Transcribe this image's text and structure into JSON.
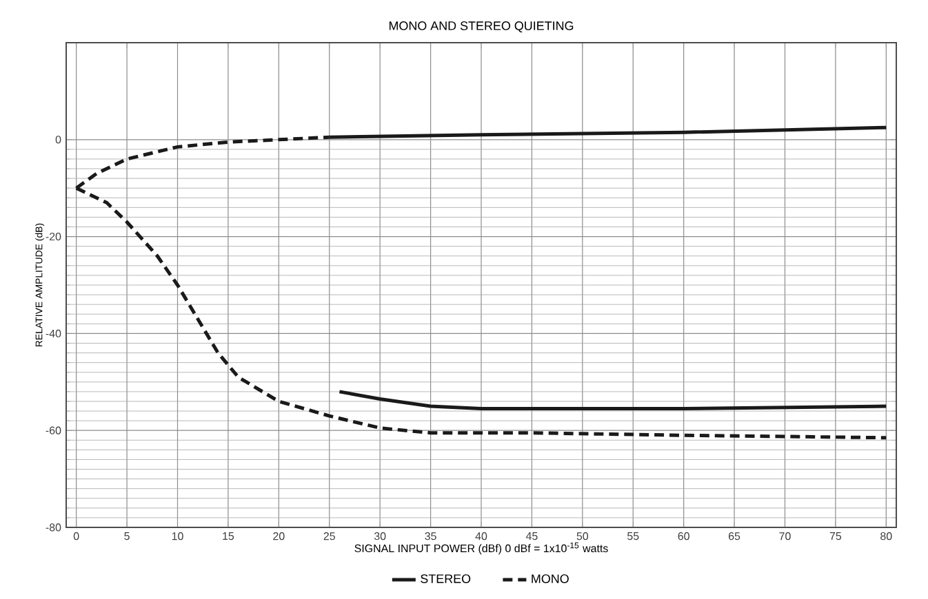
{
  "chart_data": {
    "type": "line",
    "title": "MONO AND STEREO QUIETING",
    "xlabel": "SIGNAL INPUT POWER (dBf) 0 dBf = 1x10$^{-15}$ watts",
    "ylabel": "RELATIVE AMPLITUDE (dB)",
    "xlim": [
      -1,
      81
    ],
    "ylim": [
      -80,
      20
    ],
    "xticks": [
      0,
      5,
      10,
      15,
      20,
      25,
      30,
      35,
      40,
      45,
      50,
      55,
      60,
      65,
      70,
      75,
      80
    ],
    "yticks": [
      -80,
      -60,
      -40,
      -20,
      0
    ],
    "grid": true,
    "legend": "bottom",
    "marker": "none",
    "series": [
      {
        "name": "STEREO",
        "color": "#1a1a1a",
        "line_style": "solid",
        "x": [
          25,
          40,
          60,
          80
        ],
        "values": [
          0.5,
          1,
          1.5,
          2.5
        ]
      },
      {
        "color": "#1a1a1a",
        "line_style": "solid",
        "x": [
          26,
          30,
          35,
          40,
          60,
          80
        ],
        "values": [
          -52,
          -53.5,
          -55,
          -55.5,
          -55.5,
          -55
        ]
      },
      {
        "name": "MONO",
        "color": "#1a1a1a",
        "line_style": "dashed",
        "x": [
          0,
          2,
          5,
          8,
          10,
          15,
          20,
          25
        ],
        "values": [
          -10,
          -7,
          -4,
          -2.5,
          -1.5,
          -0.5,
          0,
          0.5
        ]
      },
      {
        "color": "#1a1a1a",
        "line_style": "dashed",
        "x": [
          0,
          3,
          5,
          8,
          10,
          12,
          14,
          16,
          20,
          25,
          30,
          35,
          45,
          60,
          80
        ],
        "values": [
          -10,
          -13,
          -17,
          -24,
          -30,
          -37,
          -44,
          -49,
          -54,
          -57,
          -59.5,
          -60.5,
          -60.5,
          -61,
          -61.5
        ]
      }
    ]
  }
}
